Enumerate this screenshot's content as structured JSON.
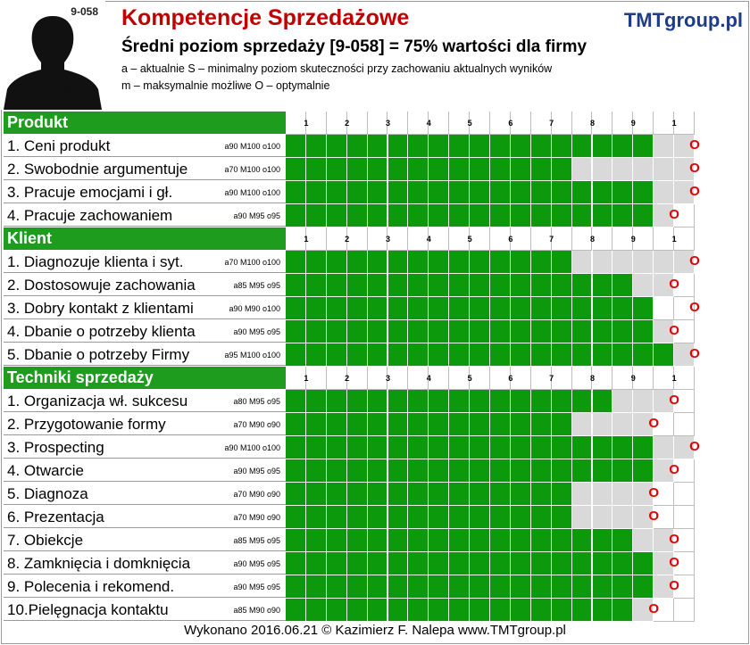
{
  "header": {
    "avatar_code": "9-058",
    "avatar_percent": "75%",
    "title": "Kompetencje Sprzedażowe",
    "brand": "TMTgroup.pl",
    "subtitle": "Średni poziom sprzedaży [9-058] = 75% wartości dla firmy",
    "legend_line1": "a – aktualnie  S – minimalny poziom skuteczności przy zachowaniu aktualnych wyników",
    "legend_line2": "m – maksymalnie możliwe  O – optymalnie"
  },
  "scale_labels": [
    "1",
    "2",
    "3",
    "4",
    "5",
    "6",
    "7",
    "8",
    "9",
    "1"
  ],
  "o_mark": "O",
  "colors": {
    "bar": "#0c9a0c",
    "section": "#1e9c1e",
    "empty": "#d9d9d9",
    "title": "#c00000",
    "brand": "#1f3c88",
    "marker": "#e00000"
  },
  "footer": "Wykonano  2016.06.21   © Kazimierz  F. Nalepa  www.TMTgroup.pl",
  "chart_data": {
    "type": "bar",
    "orientation": "horizontal",
    "scale": [
      0,
      100
    ],
    "sections": [
      {
        "title": "Produkt",
        "items": [
          {
            "label": "1. Ceni produkt",
            "tag": "a90 M100 o100",
            "a": 90,
            "M": 100,
            "o": 100
          },
          {
            "label": "2. Swobodnie argumentuje",
            "tag": "a70 M100 o100",
            "a": 70,
            "M": 100,
            "o": 100
          },
          {
            "label": "3. Pracuje emocjami i gł.",
            "tag": "a90  M100 o100",
            "a": 90,
            "M": 100,
            "o": 100
          },
          {
            "label": "4. Pracuje zachowaniem",
            "tag": "a90 M95 o95",
            "a": 90,
            "M": 95,
            "o": 95
          }
        ]
      },
      {
        "title": "Klient",
        "items": [
          {
            "label": "1. Diagnozuje klienta i syt.",
            "tag": "a70 M100 o100",
            "a": 70,
            "M": 100,
            "o": 100
          },
          {
            "label": "2. Dostosowuje zachowania",
            "tag": "a85 M95 o95",
            "a": 85,
            "M": 95,
            "o": 95
          },
          {
            "label": "3. Dobry kontakt z klientami",
            "tag": "a90 M90 o100",
            "a": 90,
            "M": 90,
            "o": 100
          },
          {
            "label": "4. Dbanie o potrzeby klienta",
            "tag": "a90 M95 o95",
            "a": 90,
            "M": 95,
            "o": 95
          },
          {
            "label": "5. Dbanie o potrzeby Firmy",
            "tag": "a95 M100 o100",
            "a": 95,
            "M": 100,
            "o": 100
          }
        ]
      },
      {
        "title": "Techniki sprzedaży",
        "items": [
          {
            "label": "1. Organizacja wł. sukcesu",
            "tag": "a80 M95 o95",
            "a": 80,
            "M": 95,
            "o": 95
          },
          {
            "label": "2. Przygotowanie formy",
            "tag": "a70  M90 o90",
            "a": 70,
            "M": 90,
            "o": 90
          },
          {
            "label": "3. Prospecting",
            "tag": "a90 M100 o100",
            "a": 90,
            "M": 100,
            "o": 100
          },
          {
            "label": "4. Otwarcie",
            "tag": "a90 M95 o95",
            "a": 90,
            "M": 95,
            "o": 95
          },
          {
            "label": "5. Diagnoza",
            "tag": "a70 M90 o90",
            "a": 70,
            "M": 90,
            "o": 90
          },
          {
            "label": "6. Prezentacja",
            "tag": "a70 M90 o90",
            "a": 70,
            "M": 90,
            "o": 90
          },
          {
            "label": "7. Obiekcje",
            "tag": "a85 M95 o95",
            "a": 85,
            "M": 95,
            "o": 95
          },
          {
            "label": "8. Zamknięcia i domknięcia",
            "tag": "a90 M95 o95",
            "a": 90,
            "M": 95,
            "o": 95
          },
          {
            "label": "9. Polecenia i rekomend.",
            "tag": "a90 M95 o95",
            "a": 90,
            "M": 95,
            "o": 95
          },
          {
            "label": "10.Pielęgnacja kontaktu",
            "tag": "a85 M90 o90",
            "a": 85,
            "M": 90,
            "o": 90
          }
        ]
      }
    ]
  }
}
